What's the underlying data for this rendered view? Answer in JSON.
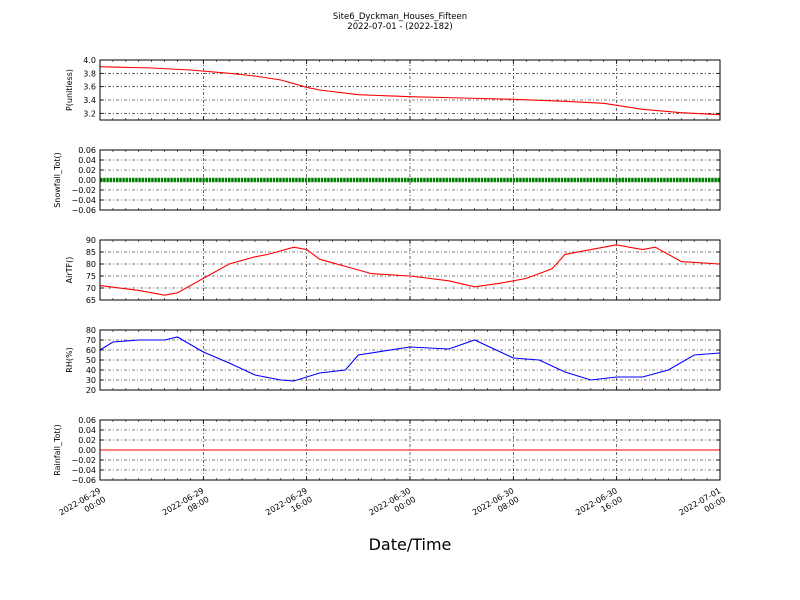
{
  "figure": {
    "title": "Site6_Dyckman_Houses_Fifteen",
    "subtitle": "2022-07-01 - (2022-182)",
    "xlabel": "Date/Time"
  },
  "chart_data": {
    "type": "line",
    "x_axis": {
      "start": "2022-06-29 00:00",
      "end": "2022-07-01 00:00",
      "ticks": [
        {
          "time": "2022-06-29 00:00",
          "line1": "2022-06-29",
          "line2": "00:00"
        },
        {
          "time": "2022-06-29 08:00",
          "line1": "2022-06-29",
          "line2": "08:00"
        },
        {
          "time": "2022-06-29 16:00",
          "line1": "2022-06-29",
          "line2": "16:00"
        },
        {
          "time": "2022-06-30 00:00",
          "line1": "2022-06-30",
          "line2": "00:00"
        },
        {
          "time": "2022-06-30 08:00",
          "line1": "2022-06-30",
          "line2": "08:00"
        },
        {
          "time": "2022-06-30 16:00",
          "line1": "2022-06-30",
          "line2": "16:00"
        },
        {
          "time": "2022-07-01 00:00",
          "line1": "2022-07-01",
          "line2": "00:00"
        }
      ]
    },
    "panels": [
      {
        "id": "pressure",
        "ylabel": "P(unitless)",
        "ylim": [
          3.1,
          4.0
        ],
        "yticks": [
          "3.2",
          "3.4",
          "3.6",
          "3.8",
          "4.0"
        ],
        "grid": true,
        "color": "#ff0000",
        "style": "line",
        "x": [
          "2022-06-29 00:00",
          "2022-06-29 04:00",
          "2022-06-29 07:00",
          "2022-06-29 10:00",
          "2022-06-29 12:00",
          "2022-06-29 14:00",
          "2022-06-29 16:00",
          "2022-06-29 17:00",
          "2022-06-29 20:00",
          "2022-06-30 00:00",
          "2022-06-30 04:00",
          "2022-06-30 08:00",
          "2022-06-30 12:00",
          "2022-06-30 15:00",
          "2022-06-30 18:00",
          "2022-06-30 21:00",
          "2022-07-01 00:00"
        ],
        "values": [
          3.9,
          3.88,
          3.85,
          3.8,
          3.76,
          3.7,
          3.59,
          3.55,
          3.48,
          3.45,
          3.43,
          3.41,
          3.38,
          3.35,
          3.26,
          3.21,
          3.18
        ]
      },
      {
        "id": "snowfall",
        "ylabel": "Snowfall_Tot()",
        "ylim": [
          -0.06,
          0.06
        ],
        "yticks": [
          "−0.06",
          "−0.04",
          "−0.02",
          "0.00",
          "0.02",
          "0.04",
          "0.06"
        ],
        "grid": true,
        "color": "#008000",
        "style": "markers",
        "constant": 0.0
      },
      {
        "id": "airtemp",
        "ylabel": "AirTF()",
        "ylim": [
          65,
          90
        ],
        "yticks": [
          "65",
          "70",
          "75",
          "80",
          "85",
          "90"
        ],
        "grid": true,
        "color": "#ff0000",
        "style": "line",
        "x": [
          "2022-06-29 00:00",
          "2022-06-29 03:00",
          "2022-06-29 05:00",
          "2022-06-29 06:00",
          "2022-06-29 08:00",
          "2022-06-29 10:00",
          "2022-06-29 12:00",
          "2022-06-29 13:00",
          "2022-06-29 15:00",
          "2022-06-29 16:00",
          "2022-06-29 17:00",
          "2022-06-29 19:00",
          "2022-06-29 21:00",
          "2022-06-30 00:00",
          "2022-06-30 03:00",
          "2022-06-30 05:00",
          "2022-06-30 07:00",
          "2022-06-30 09:00",
          "2022-06-30 11:00",
          "2022-06-30 12:00",
          "2022-06-30 14:00",
          "2022-06-30 15:00",
          "2022-06-30 16:00",
          "2022-06-30 18:00",
          "2022-06-30 19:00",
          "2022-06-30 21:00",
          "2022-07-01 00:00"
        ],
        "values": [
          71,
          69,
          67,
          68,
          74,
          80,
          83,
          84,
          87,
          86,
          82,
          79,
          76,
          75,
          73,
          70.5,
          72,
          74,
          78,
          84,
          86,
          87,
          88,
          86,
          87,
          81,
          80
        ]
      },
      {
        "id": "rh",
        "ylabel": "RH(%)",
        "ylim": [
          20,
          80
        ],
        "yticks": [
          "20",
          "30",
          "40",
          "50",
          "60",
          "70",
          "80"
        ],
        "grid": true,
        "color": "#0000ff",
        "style": "line",
        "x": [
          "2022-06-29 00:00",
          "2022-06-29 01:00",
          "2022-06-29 03:00",
          "2022-06-29 05:00",
          "2022-06-29 06:00",
          "2022-06-29 08:00",
          "2022-06-29 10:00",
          "2022-06-29 12:00",
          "2022-06-29 14:00",
          "2022-06-29 15:00",
          "2022-06-29 17:00",
          "2022-06-29 19:00",
          "2022-06-29 20:00",
          "2022-06-30 00:00",
          "2022-06-30 03:00",
          "2022-06-30 05:00",
          "2022-06-30 07:00",
          "2022-06-30 08:00",
          "2022-06-30 10:00",
          "2022-06-30 12:00",
          "2022-06-30 14:00",
          "2022-06-30 16:00",
          "2022-06-30 18:00",
          "2022-06-30 20:00",
          "2022-06-30 22:00",
          "2022-07-01 00:00"
        ],
        "values": [
          60,
          68,
          70,
          70,
          73,
          58,
          47,
          35,
          30,
          29,
          37,
          40,
          55,
          63,
          61,
          70,
          58,
          52,
          50,
          38,
          30,
          33,
          33,
          40,
          55,
          57
        ]
      },
      {
        "id": "rainfall",
        "ylabel": "Rainfall_Tot()",
        "ylim": [
          -0.06,
          0.06
        ],
        "yticks": [
          "−0.06",
          "−0.04",
          "−0.02",
          "0.00",
          "0.02",
          "0.04",
          "0.06"
        ],
        "grid": true,
        "color": "#ff0000",
        "style": "line",
        "constant": 0.0
      }
    ]
  }
}
